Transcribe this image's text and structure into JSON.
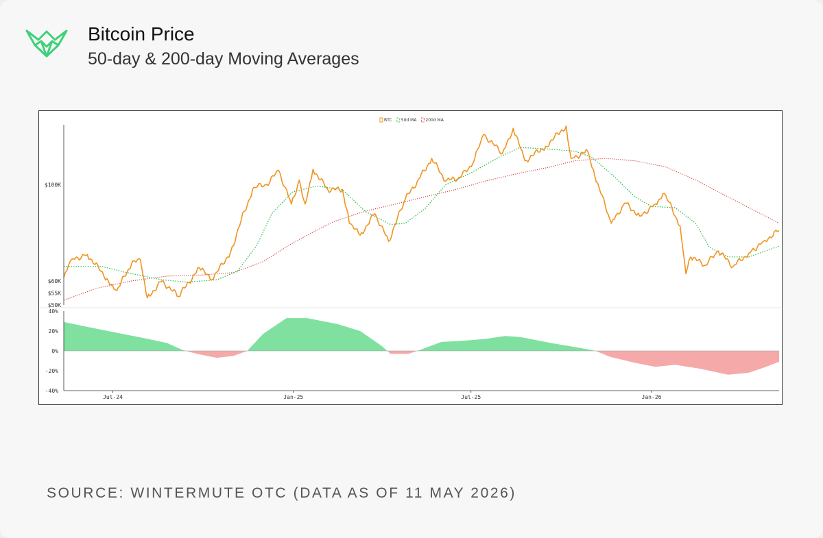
{
  "header": {
    "logo_icon": "wintermute-logo-icon",
    "title": "Bitcoin Price",
    "subtitle": "50-day & 200-day Moving Averages"
  },
  "footer": {
    "source": "SOURCE: WINTERMUTE OTC (DATA AS OF 11 MAY 2026)"
  },
  "colors": {
    "btc": "#f0931f",
    "ma50": "#2cc14b",
    "ma200": "#d23a3a",
    "positive_fill": "#7fe0a0",
    "negative_fill": "#f5a9a9",
    "logo": "#3ed17a"
  },
  "chart_data": [
    {
      "type": "line",
      "legend": {
        "position": "top-center",
        "entries": [
          "BTC",
          "50d MA",
          "200d MA"
        ]
      },
      "ylim": [
        50000,
        125000
      ],
      "yticks": [
        {
          "value": 50000,
          "label": "$50K"
        },
        {
          "value": 55000,
          "label": "$55K"
        },
        {
          "value": 60000,
          "label": "$60K"
        },
        {
          "value": 100000,
          "label": "$100K"
        }
      ],
      "xlim": [
        "2024-05-12",
        "2026-05-11"
      ],
      "grid": false,
      "series": [
        {
          "name": "BTC",
          "style": "solid",
          "points": [
            [
              "2024-05-12",
              61500
            ],
            [
              "2024-05-20",
              69000
            ],
            [
              "2024-06-05",
              71000
            ],
            [
              "2024-06-25",
              61000
            ],
            [
              "2024-07-05",
              56000
            ],
            [
              "2024-07-20",
              67000
            ],
            [
              "2024-07-29",
              69000
            ],
            [
              "2024-08-05",
              53000
            ],
            [
              "2024-08-20",
              60000
            ],
            [
              "2024-09-06",
              53500
            ],
            [
              "2024-09-27",
              65500
            ],
            [
              "2024-10-10",
              60500
            ],
            [
              "2024-10-29",
              72000
            ],
            [
              "2024-11-12",
              89000
            ],
            [
              "2024-11-22",
              99000
            ],
            [
              "2024-12-05",
              100000
            ],
            [
              "2024-12-17",
              106000
            ],
            [
              "2024-12-30",
              92000
            ],
            [
              "2025-01-07",
              102000
            ],
            [
              "2025-01-13",
              92000
            ],
            [
              "2025-01-21",
              106500
            ],
            [
              "2025-02-05",
              98000
            ],
            [
              "2025-02-20",
              98000
            ],
            [
              "2025-02-27",
              84000
            ],
            [
              "2025-03-10",
              79000
            ],
            [
              "2025-03-25",
              88000
            ],
            [
              "2025-04-08",
              76500
            ],
            [
              "2025-04-25",
              94000
            ],
            [
              "2025-05-10",
              103000
            ],
            [
              "2025-05-22",
              111000
            ],
            [
              "2025-06-05",
              101500
            ],
            [
              "2025-06-20",
              103000
            ],
            [
              "2025-07-03",
              109000
            ],
            [
              "2025-07-14",
              121000
            ],
            [
              "2025-08-02",
              113000
            ],
            [
              "2025-08-13",
              123500
            ],
            [
              "2025-08-25",
              110000
            ],
            [
              "2025-09-15",
              116000
            ],
            [
              "2025-10-06",
              124500
            ],
            [
              "2025-10-11",
              111000
            ],
            [
              "2025-10-28",
              114000
            ],
            [
              "2025-11-04",
              104000
            ],
            [
              "2025-11-21",
              84000
            ],
            [
              "2025-12-05",
              92500
            ],
            [
              "2025-12-20",
              87000
            ],
            [
              "2026-01-05",
              92000
            ],
            [
              "2026-01-14",
              96500
            ],
            [
              "2026-01-30",
              83000
            ],
            [
              "2026-02-05",
              63000
            ],
            [
              "2026-02-10",
              70000
            ],
            [
              "2026-02-25",
              66500
            ],
            [
              "2026-03-10",
              72500
            ],
            [
              "2026-03-25",
              66000
            ],
            [
              "2026-04-10",
              71500
            ],
            [
              "2026-04-25",
              76500
            ],
            [
              "2026-05-11",
              81000
            ]
          ]
        },
        {
          "name": "50d MA",
          "style": "dotted",
          "points": [
            [
              "2024-05-12",
              66000
            ],
            [
              "2024-06-20",
              66000
            ],
            [
              "2024-07-15",
              63500
            ],
            [
              "2024-08-20",
              60500
            ],
            [
              "2024-09-15",
              59500
            ],
            [
              "2024-10-15",
              60500
            ],
            [
              "2024-11-05",
              64000
            ],
            [
              "2024-11-25",
              75000
            ],
            [
              "2024-12-10",
              88000
            ],
            [
              "2024-12-31",
              97000
            ],
            [
              "2025-01-25",
              99500
            ],
            [
              "2025-02-20",
              98000
            ],
            [
              "2025-03-15",
              89000
            ],
            [
              "2025-04-10",
              83500
            ],
            [
              "2025-04-25",
              84000
            ],
            [
              "2025-05-15",
              90000
            ],
            [
              "2025-06-05",
              100000
            ],
            [
              "2025-07-01",
              105000
            ],
            [
              "2025-08-01",
              112000
            ],
            [
              "2025-08-20",
              115500
            ],
            [
              "2025-09-15",
              115000
            ],
            [
              "2025-10-15",
              114000
            ],
            [
              "2025-11-01",
              111500
            ],
            [
              "2025-11-25",
              103000
            ],
            [
              "2025-12-15",
              95000
            ],
            [
              "2026-01-01",
              91000
            ],
            [
              "2026-01-25",
              90500
            ],
            [
              "2026-02-15",
              84000
            ],
            [
              "2026-03-01",
              74000
            ],
            [
              "2026-03-20",
              70000
            ],
            [
              "2026-04-10",
              70000
            ],
            [
              "2026-05-11",
              74500
            ]
          ]
        },
        {
          "name": "200d MA",
          "style": "dotted",
          "points": [
            [
              "2024-05-12",
              52000
            ],
            [
              "2024-06-15",
              57000
            ],
            [
              "2024-07-20",
              60000
            ],
            [
              "2024-08-25",
              62000
            ],
            [
              "2024-10-01",
              62500
            ],
            [
              "2024-11-01",
              63500
            ],
            [
              "2024-12-01",
              68000
            ],
            [
              "2025-01-01",
              76000
            ],
            [
              "2025-02-10",
              84500
            ],
            [
              "2025-03-15",
              89000
            ],
            [
              "2025-04-15",
              92000
            ],
            [
              "2025-05-15",
              95000
            ],
            [
              "2025-06-15",
              98000
            ],
            [
              "2025-07-15",
              101500
            ],
            [
              "2025-08-15",
              104500
            ],
            [
              "2025-09-15",
              107000
            ],
            [
              "2025-10-15",
              110000
            ],
            [
              "2025-11-15",
              111000
            ],
            [
              "2025-12-15",
              110000
            ],
            [
              "2026-01-15",
              107500
            ],
            [
              "2026-02-15",
              102000
            ],
            [
              "2026-03-15",
              96000
            ],
            [
              "2026-04-15",
              89500
            ],
            [
              "2026-05-11",
              84000
            ]
          ]
        }
      ]
    },
    {
      "type": "area",
      "ylim": [
        -40,
        40
      ],
      "yticks": [
        {
          "value": 40,
          "label": "40%"
        },
        {
          "value": 20,
          "label": "20%"
        },
        {
          "value": 0,
          "label": "0%"
        },
        {
          "value": -20,
          "label": "-20%"
        },
        {
          "value": -40,
          "label": "-40%"
        }
      ],
      "xticks": [
        {
          "value": "2024-07-01",
          "label": "Jul-24"
        },
        {
          "value": "2025-01-01",
          "label": "Jan-25"
        },
        {
          "value": "2025-07-01",
          "label": "Jul-25"
        },
        {
          "value": "2026-01-01",
          "label": "Jan-26"
        }
      ],
      "xlim": [
        "2024-05-12",
        "2026-05-11"
      ],
      "grid": false,
      "series": [
        {
          "name": "",
          "style": "area",
          "points": [
            [
              "2024-05-12",
              29
            ],
            [
              "2024-06-01",
              25
            ],
            [
              "2024-07-01",
              19
            ],
            [
              "2024-08-01",
              13
            ],
            [
              "2024-08-25",
              8
            ],
            [
              "2024-09-10",
              1
            ],
            [
              "2024-09-25",
              -3
            ],
            [
              "2024-10-15",
              -7
            ],
            [
              "2024-11-01",
              -5
            ],
            [
              "2024-11-15",
              0
            ],
            [
              "2024-12-01",
              17
            ],
            [
              "2024-12-25",
              33
            ],
            [
              "2025-01-15",
              33
            ],
            [
              "2025-02-15",
              27
            ],
            [
              "2025-03-10",
              20
            ],
            [
              "2025-04-01",
              5
            ],
            [
              "2025-04-10",
              -3
            ],
            [
              "2025-04-28",
              -3
            ],
            [
              "2025-05-10",
              1
            ],
            [
              "2025-06-01",
              9
            ],
            [
              "2025-06-20",
              10
            ],
            [
              "2025-07-15",
              12
            ],
            [
              "2025-08-05",
              15
            ],
            [
              "2025-08-20",
              14
            ],
            [
              "2025-09-20",
              8
            ],
            [
              "2025-10-20",
              3
            ],
            [
              "2025-11-05",
              0
            ],
            [
              "2025-11-20",
              -6
            ],
            [
              "2025-12-15",
              -12
            ],
            [
              "2026-01-05",
              -16
            ],
            [
              "2026-01-25",
              -14
            ],
            [
              "2026-02-20",
              -18
            ],
            [
              "2026-03-20",
              -24
            ],
            [
              "2026-04-10",
              -22
            ],
            [
              "2026-04-25",
              -17
            ],
            [
              "2026-05-11",
              -11
            ]
          ]
        }
      ]
    }
  ]
}
